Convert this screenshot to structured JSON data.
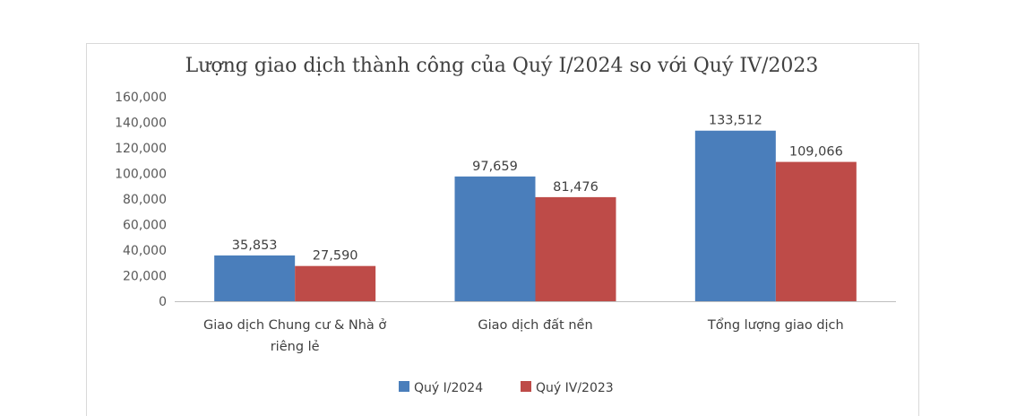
{
  "colors": {
    "series1": "#4a7ebb",
    "series2": "#be4b48",
    "axis": "#bfbfbf"
  },
  "chart_data": {
    "type": "bar",
    "title": "Lượng giao dịch thành công của Quý I/2024 so với Quý IV/2023",
    "categories": [
      [
        "Giao dịch Chung cư & Nhà ở",
        "riêng lẻ"
      ],
      [
        "Giao dịch đất nền"
      ],
      [
        "Tổng lượng giao dịch"
      ]
    ],
    "series": [
      {
        "name": "Quý I/2024",
        "values": [
          35853,
          97659,
          133512
        ],
        "labels": [
          "35,853",
          "97,659",
          "133,512"
        ]
      },
      {
        "name": "Quý IV/2023",
        "values": [
          27590,
          81476,
          109066
        ],
        "labels": [
          "27,590",
          "81,476",
          "109,066"
        ]
      }
    ],
    "y_ticks": [
      "0",
      "20,000",
      "40,000",
      "60,000",
      "80,000",
      "100,000",
      "120,000",
      "140,000",
      "160,000"
    ],
    "ylim": [
      0,
      160000
    ],
    "xlabel": "",
    "ylabel": "",
    "grid": false,
    "legend_position": "bottom"
  }
}
